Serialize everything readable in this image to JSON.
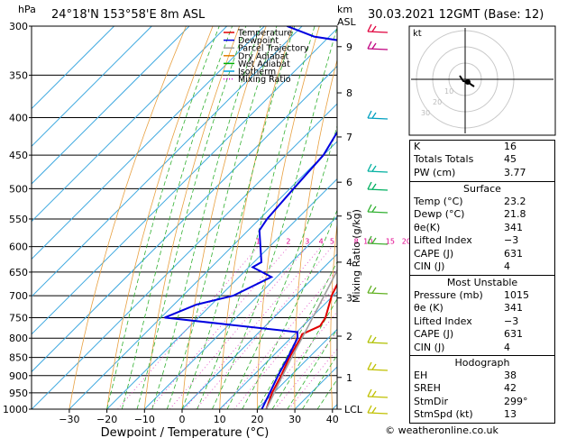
{
  "header": {
    "location": "24°18'N 153°58'E 8m ASL",
    "pressure_unit": "hPa",
    "height_unit_km": "km",
    "height_unit_asl": "ASL",
    "datetime": "30.03.2021 12GMT (Base: 12)"
  },
  "chart_data": {
    "type": "skew-t",
    "xlabel": "Dewpoint / Temperature (°C)",
    "ylabel_right": "Mixing Ratio (g/kg)",
    "x_ticks": [
      -30,
      -20,
      -10,
      0,
      10,
      20,
      30,
      40
    ],
    "x_tick_labels": [
      "−30",
      "−20",
      "−10",
      "0",
      "10",
      "20",
      "30",
      "40"
    ],
    "pressure_levels": [
      300,
      350,
      400,
      450,
      500,
      550,
      600,
      650,
      700,
      750,
      800,
      850,
      900,
      950,
      1000
    ],
    "height_km_ticks": [
      {
        "p": 1000,
        "label": "LCL"
      },
      {
        "p": 905,
        "label": "1"
      },
      {
        "p": 795,
        "label": "2"
      },
      {
        "p": 705,
        "label": "3"
      },
      {
        "p": 630,
        "label": "4"
      },
      {
        "p": 545,
        "label": "5"
      },
      {
        "p": 490,
        "label": "6"
      },
      {
        "p": 425,
        "label": "7"
      },
      {
        "p": 370,
        "label": "8"
      },
      {
        "p": 320,
        "label": "9"
      }
    ],
    "mixing_ratio_labels": [
      "1",
      "2",
      "3",
      "4",
      "5",
      "8",
      "10",
      "15",
      "20",
      "25"
    ],
    "mixing_ratio_values": [
      1,
      2,
      3,
      4,
      5,
      8,
      10,
      15,
      20,
      25
    ],
    "legend": [
      {
        "name": "Temperature",
        "color": "#e00000",
        "style": "solid"
      },
      {
        "name": "Dewpoint",
        "color": "#0000e0",
        "style": "solid"
      },
      {
        "name": "Parcel Trajectory",
        "color": "#a0a0a0",
        "style": "solid"
      },
      {
        "name": "Dry Adiabat",
        "color": "#e08000",
        "style": "solid"
      },
      {
        "name": "Wet Adiabat",
        "color": "#00b000",
        "style": "solid"
      },
      {
        "name": "Isotherm",
        "color": "#00a0e0",
        "style": "solid"
      },
      {
        "name": "Mixing Ratio",
        "color": "#e000e0",
        "style": "dotted"
      }
    ],
    "series": [
      {
        "name": "Temperature",
        "color": "#e00000",
        "points": [
          [
            1013,
            23.2
          ],
          [
            1000,
            22.4
          ],
          [
            950,
            19.6
          ],
          [
            900,
            17.4
          ],
          [
            850,
            14.8
          ],
          [
            800,
            12.6
          ],
          [
            790,
            12.0
          ],
          [
            770,
            14.6
          ],
          [
            750,
            13.8
          ],
          [
            700,
            9.6
          ],
          [
            650,
            6.4
          ],
          [
            600,
            2.8
          ],
          [
            550,
            -1.4
          ],
          [
            500,
            -6.4
          ],
          [
            450,
            -10.6
          ],
          [
            400,
            -17.4
          ],
          [
            350,
            -25.0
          ],
          [
            310,
            -33.4
          ],
          [
            300,
            -33.8
          ]
        ]
      },
      {
        "name": "Dewpoint",
        "color": "#0000e0",
        "points": [
          [
            1013,
            21.8
          ],
          [
            1000,
            21.2
          ],
          [
            950,
            19.0
          ],
          [
            900,
            16.6
          ],
          [
            850,
            14.4
          ],
          [
            800,
            11.8
          ],
          [
            785,
            10.2
          ],
          [
            750,
            -29.0
          ],
          [
            720,
            -24.0
          ],
          [
            700,
            -16.6
          ],
          [
            660,
            -11.4
          ],
          [
            640,
            -19.0
          ],
          [
            630,
            -18.0
          ],
          [
            570,
            -27.0
          ],
          [
            550,
            -28.0
          ],
          [
            500,
            -29.0
          ],
          [
            450,
            -30.0
          ],
          [
            400,
            -34.0
          ],
          [
            350,
            -40.0
          ],
          [
            320,
            -44.0
          ],
          [
            310,
            -64.0
          ],
          [
            300,
            -74.0
          ]
        ]
      },
      {
        "name": "Parcel Trajectory",
        "color": "#a0a0a0",
        "points": [
          [
            1000,
            22.4
          ],
          [
            950,
            20.2
          ],
          [
            900,
            17.8
          ],
          [
            850,
            15.4
          ],
          [
            800,
            13.0
          ],
          [
            750,
            10.4
          ],
          [
            700,
            7.6
          ],
          [
            650,
            4.6
          ],
          [
            600,
            1.2
          ],
          [
            550,
            -2.4
          ],
          [
            500,
            -6.4
          ],
          [
            450,
            -11.2
          ],
          [
            400,
            -16.4
          ],
          [
            350,
            -23.0
          ],
          [
            300,
            -31.0
          ]
        ]
      }
    ]
  },
  "hodograph": {
    "label": "kt",
    "ring_labels": [
      "10",
      "20",
      "30"
    ]
  },
  "indices": {
    "rows": [
      {
        "label": "K",
        "value": "16"
      },
      {
        "label": "Totals Totals",
        "value": "45"
      },
      {
        "label": "PW (cm)",
        "value": "3.77"
      }
    ]
  },
  "surface": {
    "title": "Surface",
    "rows": [
      {
        "label": "Temp (°C)",
        "value": "23.2"
      },
      {
        "label": "Dewp (°C)",
        "value": "21.8"
      },
      {
        "label": "θe(K)",
        "value": "341"
      },
      {
        "label": "Lifted Index",
        "value": "−3"
      },
      {
        "label": "CAPE (J)",
        "value": "631"
      },
      {
        "label": "CIN (J)",
        "value": "4"
      }
    ]
  },
  "most_unstable": {
    "title": "Most Unstable",
    "rows": [
      {
        "label": "Pressure (mb)",
        "value": "1015"
      },
      {
        "label": "θe (K)",
        "value": "341"
      },
      {
        "label": "Lifted Index",
        "value": "−3"
      },
      {
        "label": "CAPE (J)",
        "value": "631"
      },
      {
        "label": "CIN (J)",
        "value": "4"
      }
    ]
  },
  "hodograph_stats": {
    "title": "Hodograph",
    "rows": [
      {
        "label": "EH",
        "value": "38"
      },
      {
        "label": "SREH",
        "value": "42"
      },
      {
        "label": "StmDir",
        "value": "299°"
      },
      {
        "label": "StmSpd (kt)",
        "value": "13"
      }
    ]
  },
  "footer": {
    "credit": "© weatheronline.co.uk"
  }
}
